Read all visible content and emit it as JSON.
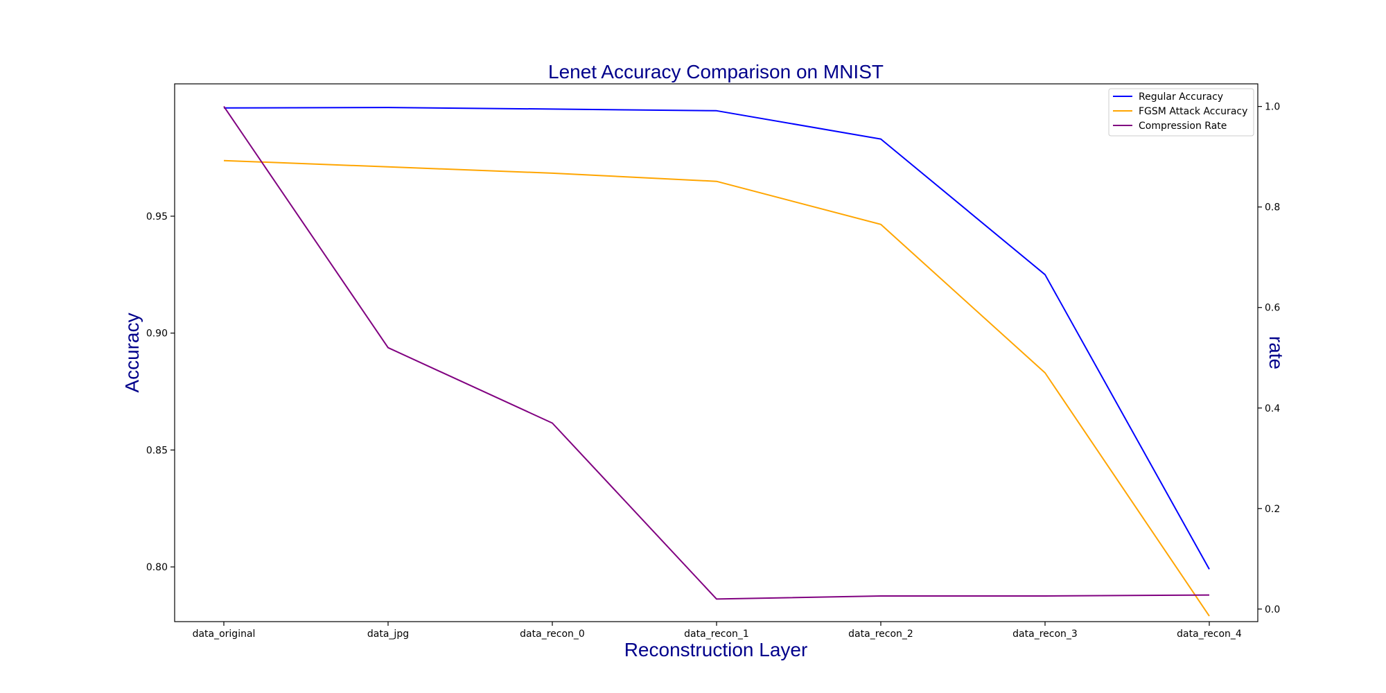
{
  "chart_data": {
    "type": "line",
    "title": "Lenet Accuracy Comparison on MNIST",
    "xlabel": "Reconstruction Layer",
    "ylabel": "Accuracy",
    "ylabel_right": "rate",
    "categories": [
      "data_original",
      "data_jpg",
      "data_recon_0",
      "data_recon_1",
      "data_recon_2",
      "data_recon_3",
      "data_recon_4"
    ],
    "ylim": [
      0.7766,
      1.0066
    ],
    "ylim_right": [
      -0.025,
      1.045
    ],
    "yticks": [
      0.8,
      0.85,
      0.9,
      0.95
    ],
    "yticks_right": [
      0.0,
      0.2,
      0.4,
      0.6,
      0.8,
      1.0
    ],
    "grid": false,
    "legend_position": "top-right",
    "series": [
      {
        "name": "Regular Accuracy",
        "axis": "left",
        "color": "#0000ff",
        "values": [
          0.9963,
          0.9965,
          0.9958,
          0.9951,
          0.983,
          0.925,
          0.799
        ]
      },
      {
        "name": "FGSM Attack Accuracy",
        "axis": "left",
        "color": "#ffa500",
        "values": [
          0.9738,
          0.9711,
          0.9684,
          0.9649,
          0.9465,
          0.883,
          0.779
        ]
      },
      {
        "name": "Compression Rate",
        "axis": "right",
        "color": "#800080",
        "values": [
          1.0,
          0.52,
          0.37,
          0.02,
          0.026,
          0.026,
          0.028
        ]
      }
    ],
    "colors": {
      "text_accent": "#00008b",
      "axes": "#000000"
    }
  }
}
